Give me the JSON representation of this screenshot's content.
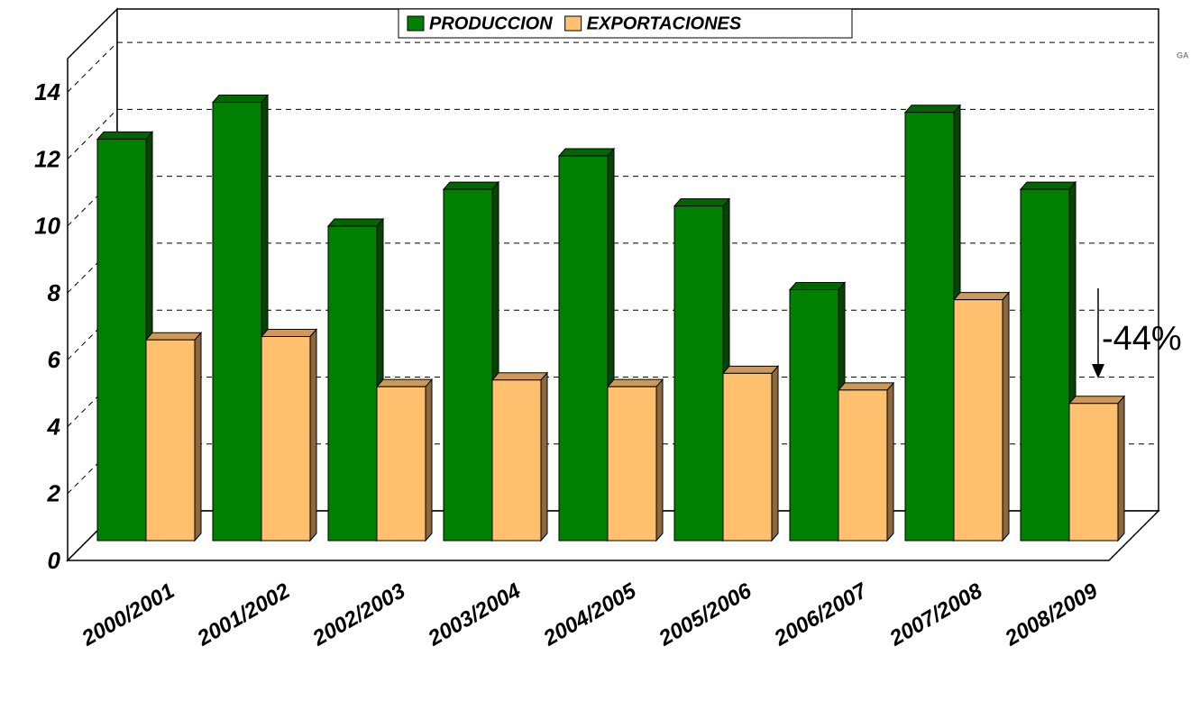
{
  "chart_data": {
    "type": "bar3d",
    "categories": [
      "2000/2001",
      "2001/2002",
      "2002/2003",
      "2003/2004",
      "2004/2005",
      "2005/2006",
      "2006/2007",
      "2007/2008",
      "2008/2009"
    ],
    "series": [
      {
        "name": "PRODUCCION",
        "color": "#008000",
        "values": [
          12.0,
          13.1,
          9.4,
          10.5,
          11.5,
          10.0,
          7.5,
          12.8,
          10.5
        ]
      },
      {
        "name": "EXPORTACIONES",
        "color": "#ffc070",
        "values": [
          6.0,
          6.1,
          4.6,
          4.8,
          4.6,
          5.0,
          4.5,
          7.2,
          4.1
        ]
      }
    ],
    "ylim": [
      0,
      15
    ],
    "yticks": [
      0,
      2,
      4,
      6,
      8,
      10,
      12,
      14
    ],
    "grid": true,
    "annotation": "-44%",
    "watermark": "GA"
  }
}
